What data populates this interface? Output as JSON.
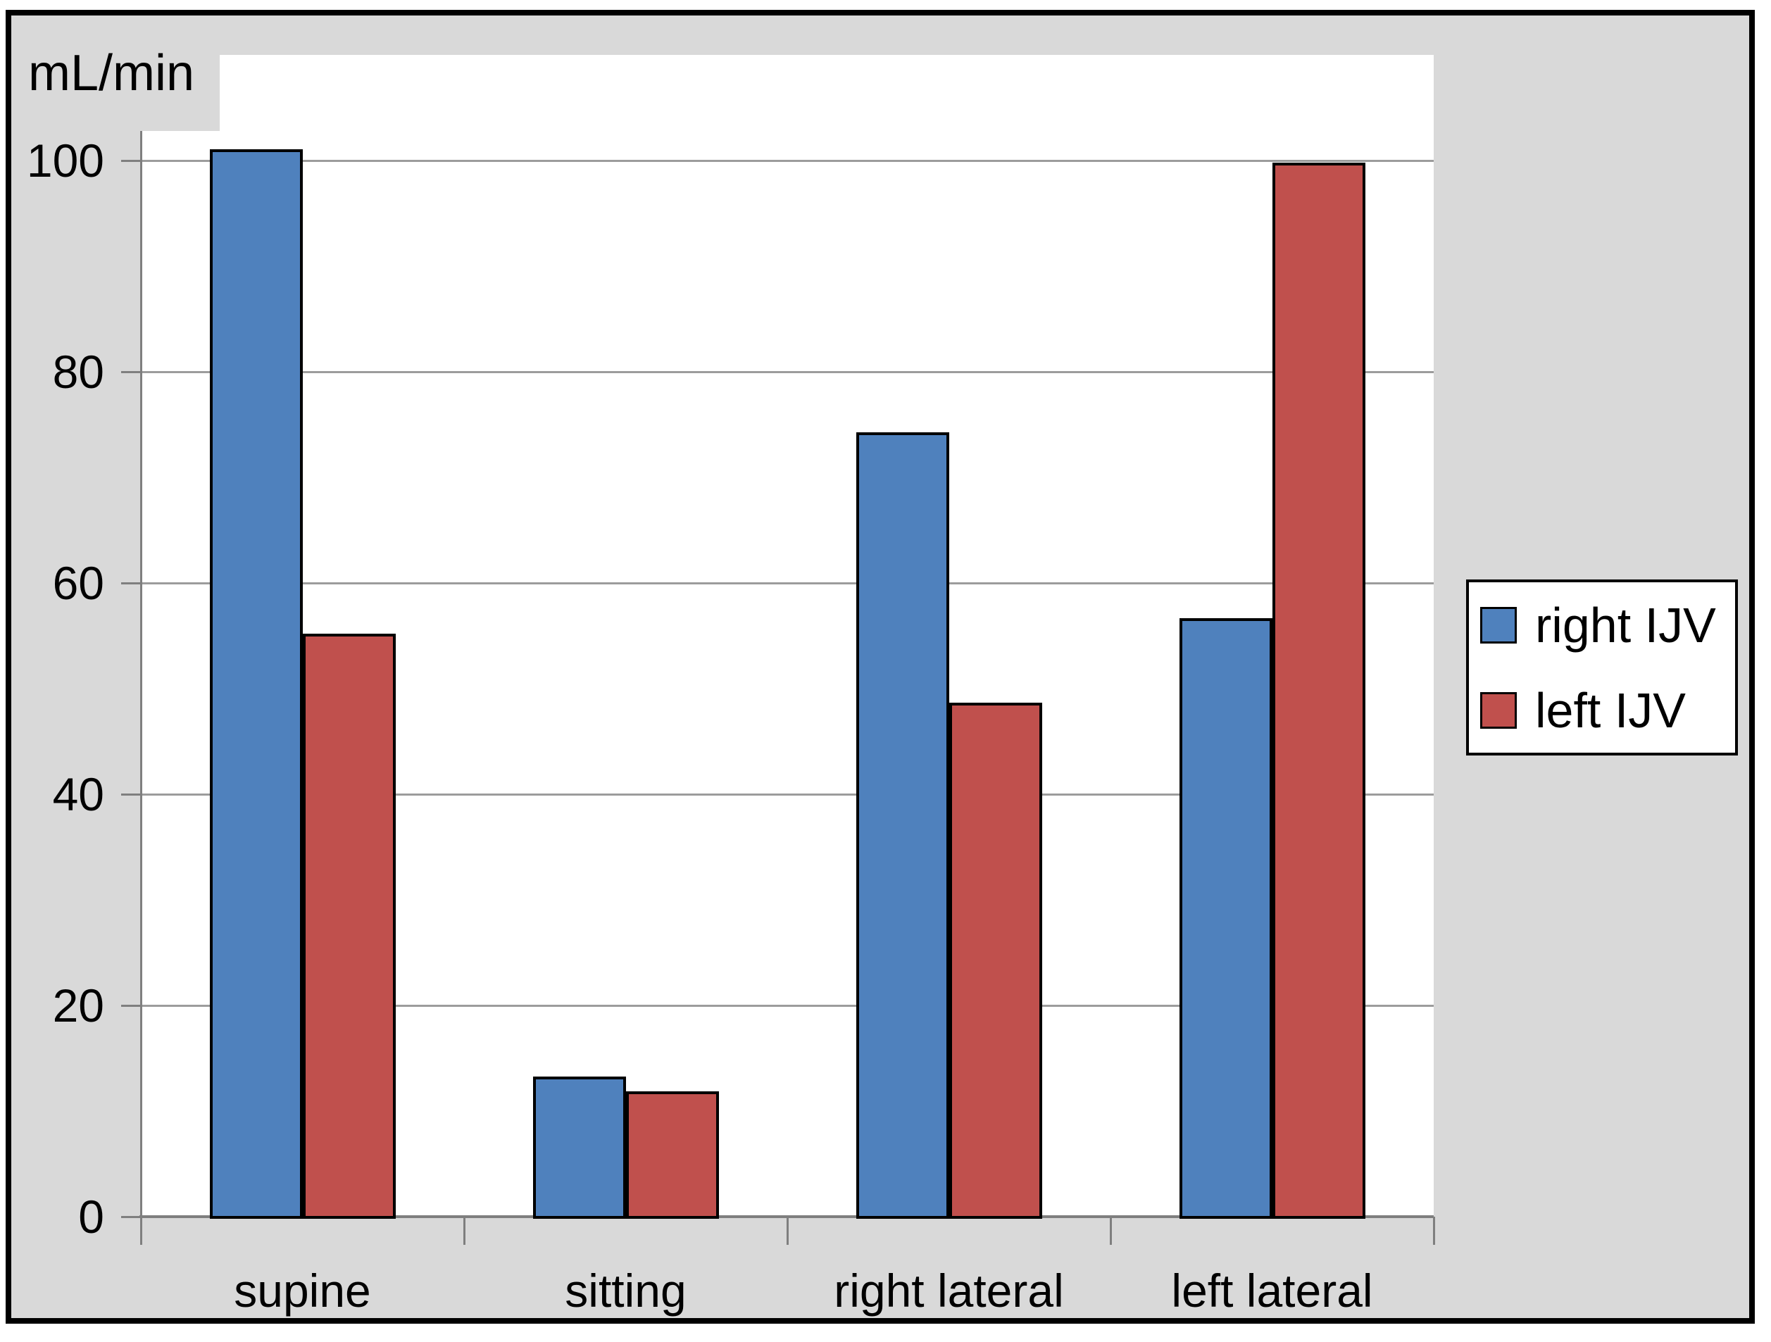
{
  "chart_data": {
    "type": "bar",
    "title": "",
    "ylabel": "mL/min",
    "xlabel": "",
    "categories": [
      "supine",
      "sitting",
      "right lateral",
      "left lateral"
    ],
    "series": [
      {
        "name": "right IJV",
        "color": "#4F81BD",
        "values": [
          101.1,
          13.3,
          74.3,
          56.7
        ]
      },
      {
        "name": "left IJV",
        "color": "#C0504D",
        "values": [
          55.2,
          11.9,
          48.7,
          99.8
        ]
      }
    ],
    "ylim": [
      0,
      110
    ],
    "yticks": [
      0,
      20,
      40,
      60,
      80,
      100
    ],
    "grid": true,
    "legend_position": "right",
    "plot_background": "#ffffff",
    "chart_background": "#D9D9D9",
    "gridline_color": "#9C9C9C",
    "axis_color": "#7F7F7F",
    "bar_outline_color": "#000000"
  }
}
